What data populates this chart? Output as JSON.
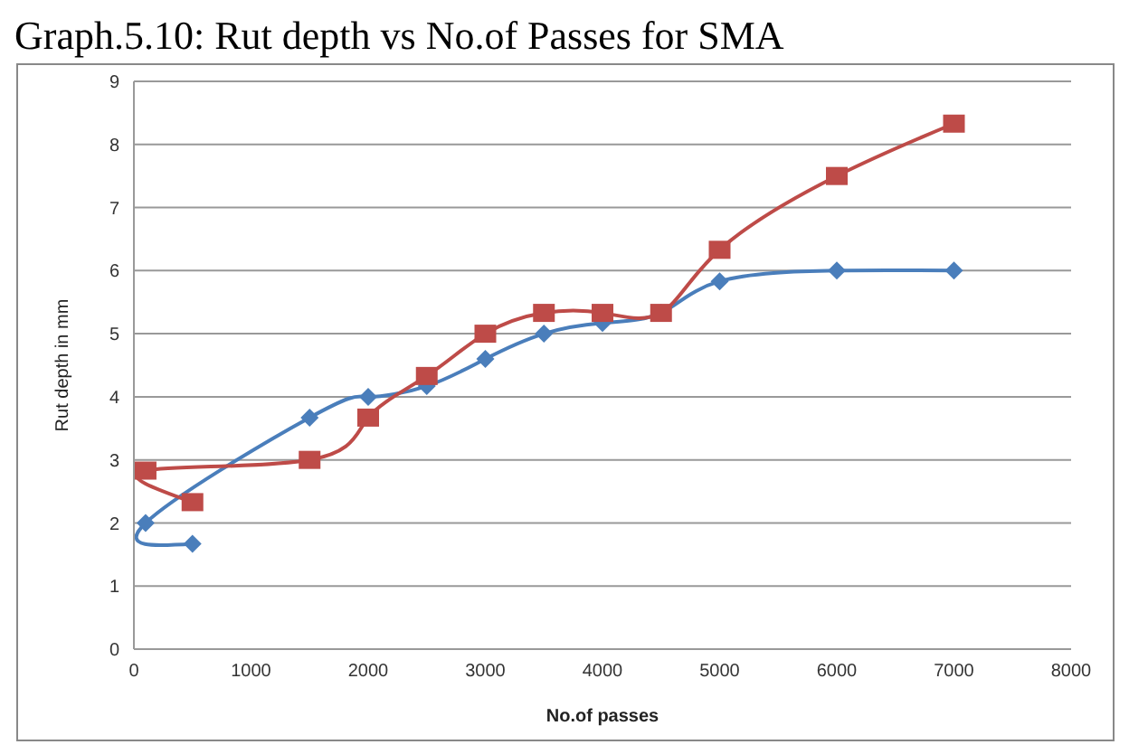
{
  "chart_data": {
    "type": "line",
    "title": "Graph.5.10: Rut depth vs No.of Passes for SMA",
    "xlabel": "No.of passes",
    "ylabel": "Rut depth in mm",
    "xlim": [
      0,
      8000
    ],
    "xticks": [
      0,
      1000,
      2000,
      3000,
      4000,
      5000,
      6000,
      7000,
      8000
    ],
    "ylim": [
      0,
      9
    ],
    "yticks": [
      0,
      1,
      2,
      3,
      4,
      5,
      6,
      7,
      8,
      9
    ],
    "grid": "y",
    "series": [
      {
        "color": "#4a7ebb",
        "marker": "diamond",
        "x": [
          500,
          100,
          1500,
          2000,
          2500,
          3000,
          3500,
          4000,
          4500,
          5000,
          6000,
          7000
        ],
        "values": [
          1.67,
          2.0,
          3.67,
          4.0,
          4.17,
          4.6,
          5.0,
          5.17,
          5.33,
          5.83,
          6.0,
          6.0
        ]
      },
      {
        "color": "#be4b48",
        "marker": "square",
        "x": [
          500,
          100,
          1500,
          2000,
          2500,
          3000,
          3500,
          4000,
          4500,
          5000,
          6000,
          7000
        ],
        "values": [
          2.33,
          2.83,
          3.0,
          3.67,
          4.33,
          5.0,
          5.33,
          5.33,
          5.33,
          6.33,
          7.5,
          8.33
        ]
      }
    ]
  }
}
